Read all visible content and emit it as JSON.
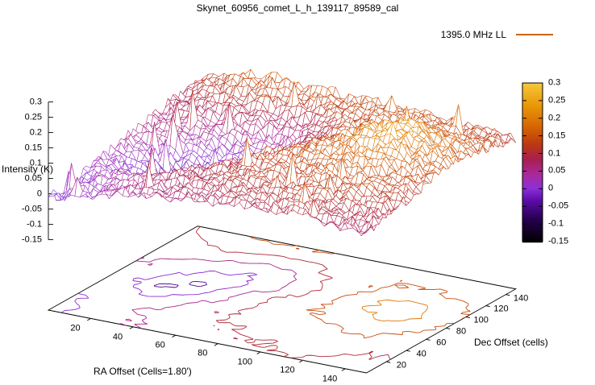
{
  "title": "Skynet_60956_comet_L_h_139117_89589_cal",
  "legend": {
    "label": "1395.0 MHz LL",
    "line_color": "#c86400"
  },
  "chart_data": {
    "type": "surface",
    "title": "Skynet_60956_comet_L_h_139117_89589_cal",
    "series_name": "1395.0 MHz LL",
    "legend_position": "top-right",
    "axes": {
      "x": {
        "label": "RA Offset (Cells=1.80')",
        "range": [
          0,
          150
        ],
        "ticks": [
          "20",
          "40",
          "60",
          "80",
          "100",
          "120",
          "140"
        ]
      },
      "y": {
        "label": "Dec Offset (cells)",
        "range": [
          0,
          150
        ],
        "ticks": [
          "20",
          "40",
          "60",
          "80",
          "100",
          "120",
          "140"
        ]
      },
      "z": {
        "label": "Intensity (K)",
        "range": [
          -0.15,
          0.3
        ],
        "ticks": [
          "0.3",
          "0.25",
          "0.2",
          "0.15",
          "0.1",
          "0.05",
          "0",
          "-0.05",
          "-0.1",
          "-0.15"
        ]
      }
    },
    "colorbar": {
      "range": [
        -0.15,
        0.3
      ],
      "ticks": [
        "0.3",
        "0.25",
        "0.2",
        "0.15",
        "0.1",
        "0.05",
        "0",
        "-0.05",
        "-0.1",
        "-0.15"
      ],
      "palette": [
        {
          "t": 0.0,
          "c": "#000000"
        },
        {
          "t": 0.14,
          "c": "#26004d"
        },
        {
          "t": 0.26,
          "c": "#5a0ca8"
        },
        {
          "t": 0.34,
          "c": "#8d2fd8"
        },
        {
          "t": 0.42,
          "c": "#a82a9e"
        },
        {
          "t": 0.52,
          "c": "#a81e50"
        },
        {
          "t": 0.62,
          "c": "#bc3a10"
        },
        {
          "t": 0.74,
          "c": "#d96a02"
        },
        {
          "t": 0.87,
          "c": "#ea9a0a"
        },
        {
          "t": 1.0,
          "c": "#f5c83c"
        }
      ]
    },
    "contour_levels": [
      -0.05,
      0,
      0.05,
      0.1,
      0.15,
      0.2
    ],
    "grid": {
      "x_range": [
        0,
        150
      ],
      "y_range": [
        0,
        150
      ],
      "nx": 13,
      "ny": 13,
      "z_values": [
        [
          -0.01,
          0.01,
          0.03,
          0.05,
          0.06,
          0.07,
          0.08,
          0.09,
          0.09,
          0.1,
          0.09,
          0.08,
          0.08
        ],
        [
          -0.02,
          0.01,
          0.03,
          0.05,
          0.07,
          0.08,
          0.09,
          0.1,
          0.1,
          0.11,
          0.1,
          0.09,
          0.09
        ],
        [
          -0.01,
          0.02,
          0.04,
          0.06,
          0.08,
          0.09,
          0.1,
          0.11,
          0.11,
          0.12,
          0.11,
          0.1,
          0.1
        ],
        [
          0.01,
          0.02,
          0.02,
          0.04,
          0.08,
          0.1,
          0.11,
          0.12,
          0.12,
          0.13,
          0.13,
          0.12,
          0.11
        ],
        [
          0.02,
          0.01,
          -0.01,
          0.01,
          0.05,
          0.09,
          0.12,
          0.13,
          0.13,
          0.15,
          0.15,
          0.13,
          0.12
        ],
        [
          0.03,
          0.0,
          -0.06,
          -0.02,
          0.03,
          0.08,
          0.12,
          0.14,
          0.15,
          0.17,
          0.18,
          0.15,
          0.13
        ],
        [
          0.04,
          0.02,
          -0.03,
          -0.06,
          0.01,
          0.06,
          0.11,
          0.14,
          0.16,
          0.19,
          0.21,
          0.17,
          0.14
        ],
        [
          0.05,
          0.04,
          0.01,
          -0.02,
          -0.01,
          0.03,
          0.09,
          0.13,
          0.17,
          0.21,
          0.23,
          0.19,
          0.15
        ],
        [
          0.06,
          0.05,
          0.03,
          0.01,
          0.0,
          0.02,
          0.08,
          0.12,
          0.16,
          0.2,
          0.22,
          0.18,
          0.15
        ],
        [
          0.07,
          0.07,
          0.06,
          0.05,
          0.03,
          0.05,
          0.09,
          0.12,
          0.15,
          0.17,
          0.18,
          0.16,
          0.14
        ],
        [
          0.08,
          0.09,
          0.1,
          0.09,
          0.08,
          0.08,
          0.11,
          0.13,
          0.14,
          0.15,
          0.15,
          0.14,
          0.13
        ],
        [
          0.09,
          0.11,
          0.13,
          0.13,
          0.12,
          0.12,
          0.13,
          0.14,
          0.14,
          0.14,
          0.14,
          0.13,
          0.12
        ],
        [
          0.1,
          0.13,
          0.15,
          0.16,
          0.15,
          0.15,
          0.14,
          0.14,
          0.14,
          0.13,
          0.13,
          0.12,
          0.11
        ]
      ]
    },
    "noise": {
      "seed": 11,
      "amplitude": 0.018,
      "spike_chance": 0.012,
      "spike_max": 0.11
    }
  }
}
